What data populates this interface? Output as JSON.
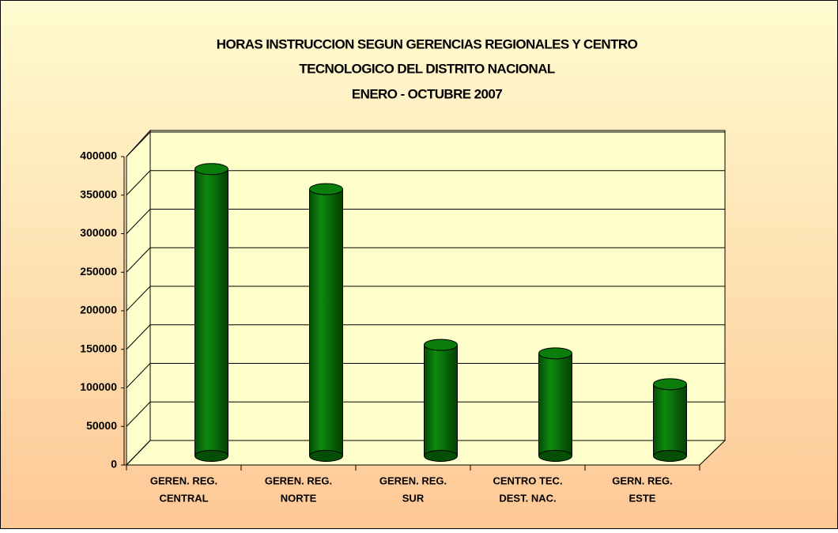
{
  "chart_data": {
    "type": "bar3d",
    "title": [
      "HORAS INSTRUCCION SEGUN GERENCIAS REGIONALES Y CENTRO",
      "TECNOLOGICO DEL DISTRITO NACIONAL",
      "ENERO - OCTUBRE 2007"
    ],
    "categories": [
      [
        "GEREN. REG.",
        "CENTRAL"
      ],
      [
        "GEREN. REG.",
        "NORTE"
      ],
      [
        "GEREN. REG.",
        "SUR"
      ],
      [
        "CENTRO TEC.",
        "DEST. NAC."
      ],
      [
        "GERN. REG.",
        "ESTE"
      ]
    ],
    "values": [
      372000,
      346000,
      144000,
      133000,
      93000
    ],
    "color": "#0b7a0b",
    "ylim": [
      0,
      400000
    ],
    "yticks": [
      0,
      50000,
      100000,
      150000,
      200000,
      250000,
      300000,
      350000,
      400000
    ],
    "grid": true
  }
}
